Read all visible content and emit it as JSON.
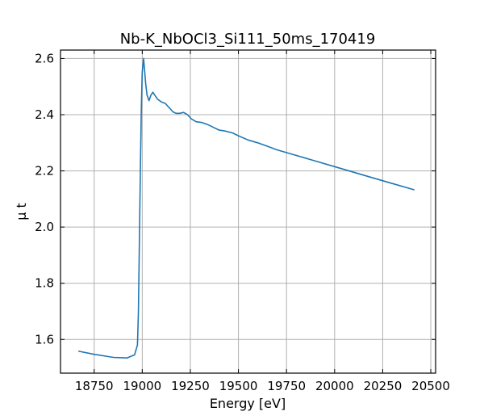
{
  "chart_data": {
    "type": "line",
    "title": "Nb-K_NbOCl3_Si111_50ms_170419",
    "xlabel": "Energy [eV]",
    "ylabel": "μ t",
    "xlim": [
      18575,
      20525
    ],
    "ylim": [
      1.48,
      2.63
    ],
    "xticks": [
      18750,
      19000,
      19250,
      19500,
      19750,
      20000,
      20250,
      20500
    ],
    "yticks": [
      1.6,
      1.8,
      2.0,
      2.2,
      2.4,
      2.6
    ],
    "grid": true,
    "color": "#1f77b4",
    "series": [
      {
        "x": [
          18670,
          18750,
          18850,
          18920,
          18960,
          18975,
          18980,
          18985,
          18990,
          18995,
          19000,
          19007,
          19012,
          19018,
          19025,
          19035,
          19045,
          19055,
          19065,
          19080,
          19100,
          19120,
          19140,
          19160,
          19175,
          19195,
          19215,
          19235,
          19255,
          19280,
          19310,
          19340,
          19370,
          19400,
          19430,
          19470,
          19500,
          19550,
          19600,
          19650,
          19700,
          19800,
          19900,
          20000,
          20100,
          20200,
          20300,
          20412
        ],
        "y": [
          1.558,
          1.547,
          1.536,
          1.534,
          1.545,
          1.58,
          1.7,
          1.95,
          2.2,
          2.42,
          2.55,
          2.6,
          2.56,
          2.51,
          2.47,
          2.45,
          2.47,
          2.48,
          2.47,
          2.455,
          2.445,
          2.44,
          2.425,
          2.41,
          2.405,
          2.405,
          2.408,
          2.4,
          2.385,
          2.375,
          2.372,
          2.365,
          2.355,
          2.345,
          2.342,
          2.335,
          2.325,
          2.31,
          2.3,
          2.288,
          2.275,
          2.255,
          2.235,
          2.215,
          2.195,
          2.175,
          2.155,
          2.133
        ]
      }
    ]
  }
}
